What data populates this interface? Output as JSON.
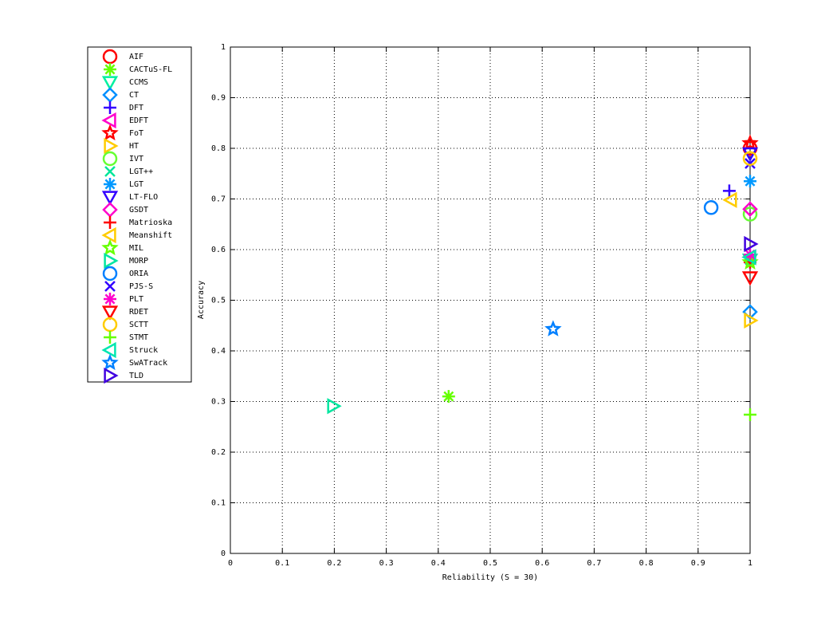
{
  "chart_data": {
    "type": "scatter",
    "xlabel": "Reliability (S = 30)",
    "ylabel": "Accuracy",
    "xlim": [
      0,
      1
    ],
    "ylim": [
      0,
      1
    ],
    "xticks": [
      0,
      0.1,
      0.2,
      0.3,
      0.4,
      0.5,
      0.6,
      0.7,
      0.8,
      0.9,
      1
    ],
    "yticks": [
      0,
      0.1,
      0.2,
      0.3,
      0.4,
      0.5,
      0.6,
      0.7,
      0.8,
      0.9,
      1
    ],
    "grid": true,
    "legend": "outside-left",
    "series": [
      {
        "name": "AIF",
        "color": "#ff0000",
        "marker": "circle",
        "x": [
          1
        ],
        "values": [
          0.8
        ]
      },
      {
        "name": "CACTuS-FL",
        "color": "#66ff00",
        "marker": "asterisk",
        "x": [
          0.42
        ],
        "values": [
          0.31
        ]
      },
      {
        "name": "CCMS",
        "color": "#00f0a0",
        "marker": "triangle-down",
        "x": [
          1
        ],
        "values": [
          0.58
        ]
      },
      {
        "name": "CT",
        "color": "#0090ff",
        "marker": "diamond",
        "x": [
          1
        ],
        "values": [
          0.477
        ]
      },
      {
        "name": "DFT",
        "color": "#3300ff",
        "marker": "plus",
        "x": [
          0.96
        ],
        "values": [
          0.716
        ]
      },
      {
        "name": "EDFT",
        "color": "#ff00cc",
        "marker": "triangle-left",
        "x": [
          1
        ],
        "values": [
          0.585
        ]
      },
      {
        "name": "FoT",
        "color": "#ff0000",
        "marker": "star",
        "x": [
          1
        ],
        "values": [
          0.81
        ]
      },
      {
        "name": "HT",
        "color": "#ffcc00",
        "marker": "triangle-right",
        "x": [
          1
        ],
        "values": [
          0.46
        ]
      },
      {
        "name": "IVT",
        "color": "#66ff33",
        "marker": "circle",
        "x": [
          1
        ],
        "values": [
          0.67
        ]
      },
      {
        "name": "LGT++",
        "color": "#00e699",
        "marker": "x",
        "x": [
          1
        ],
        "values": [
          0.58
        ]
      },
      {
        "name": "LGT",
        "color": "#0099ff",
        "marker": "asterisk",
        "x": [
          1
        ],
        "values": [
          0.735
        ]
      },
      {
        "name": "LT-FLO",
        "color": "#3300ff",
        "marker": "triangle-down",
        "x": [
          1
        ],
        "values": [
          0.79
        ]
      },
      {
        "name": "GSDT",
        "color": "#ff00cc",
        "marker": "diamond",
        "x": [
          1
        ],
        "values": [
          0.68
        ]
      },
      {
        "name": "Matrioska",
        "color": "#ff0000",
        "marker": "plus",
        "x": [
          1
        ],
        "values": [
          0.575
        ]
      },
      {
        "name": "Meanshift",
        "color": "#ffcc00",
        "marker": "triangle-left",
        "x": [
          0.963
        ],
        "values": [
          0.698
        ]
      },
      {
        "name": "MIL",
        "color": "#66ff00",
        "marker": "star",
        "x": [
          1
        ],
        "values": [
          0.575
        ]
      },
      {
        "name": "MORP",
        "color": "#00e6a0",
        "marker": "triangle-right",
        "x": [
          0.198
        ],
        "values": [
          0.291
        ]
      },
      {
        "name": "ORIA",
        "color": "#0080ff",
        "marker": "circle",
        "x": [
          0.925
        ],
        "values": [
          0.683
        ]
      },
      {
        "name": "PJS-S",
        "color": "#3300ff",
        "marker": "x",
        "x": [
          1
        ],
        "values": [
          0.77
        ]
      },
      {
        "name": "PLT",
        "color": "#ff00cc",
        "marker": "asterisk",
        "x": [
          1
        ],
        "values": [
          0.59
        ]
      },
      {
        "name": "RDET",
        "color": "#ff0000",
        "marker": "triangle-down",
        "x": [
          1
        ],
        "values": [
          0.545
        ]
      },
      {
        "name": "SCTT",
        "color": "#ffcc00",
        "marker": "circle",
        "x": [
          1
        ],
        "values": [
          0.78
        ]
      },
      {
        "name": "STMT",
        "color": "#66ff00",
        "marker": "plus",
        "x": [
          1
        ],
        "values": [
          0.274
        ]
      },
      {
        "name": "Struck",
        "color": "#00e6b0",
        "marker": "triangle-left",
        "x": [
          1
        ],
        "values": [
          0.585
        ]
      },
      {
        "name": "SwATrack",
        "color": "#0080ff",
        "marker": "star",
        "x": [
          0.621
        ],
        "values": [
          0.443
        ]
      },
      {
        "name": "TLD",
        "color": "#4000e0",
        "marker": "triangle-right",
        "x": [
          1
        ],
        "values": [
          0.611
        ]
      }
    ]
  }
}
